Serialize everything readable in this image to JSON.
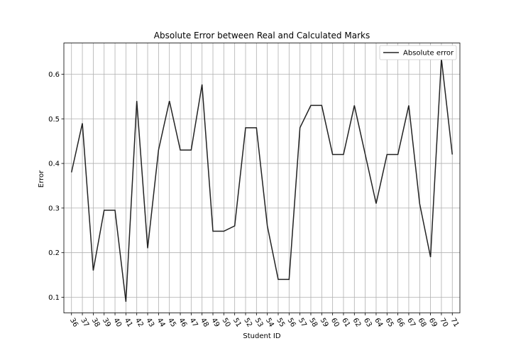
{
  "chart_data": {
    "type": "line",
    "title": "Absolute Error between Real and Calculated Marks",
    "xlabel": "Student ID",
    "ylabel": "Error",
    "x": [
      36,
      37,
      38,
      39,
      40,
      41,
      42,
      43,
      44,
      45,
      46,
      47,
      48,
      49,
      50,
      51,
      52,
      53,
      54,
      55,
      56,
      57,
      58,
      59,
      60,
      61,
      62,
      63,
      64,
      65,
      66,
      67,
      68,
      69,
      70,
      71
    ],
    "series": [
      {
        "name": "Absolute error",
        "color": "#222222",
        "values": [
          0.38,
          0.49,
          0.16,
          0.295,
          0.295,
          0.09,
          0.54,
          0.21,
          0.43,
          0.54,
          0.43,
          0.43,
          0.577,
          0.248,
          0.248,
          0.26,
          0.48,
          0.48,
          0.26,
          0.14,
          0.14,
          0.48,
          0.53,
          0.53,
          0.42,
          0.42,
          0.53,
          0.42,
          0.31,
          0.42,
          0.42,
          0.53,
          0.31,
          0.19,
          0.635,
          0.42
        ]
      }
    ],
    "ylim": [
      0.065,
      0.67
    ],
    "yticks": [
      "0.1",
      "0.2",
      "0.3",
      "0.4",
      "0.5",
      "0.6"
    ],
    "grid": true,
    "legend_position": "top-right"
  }
}
